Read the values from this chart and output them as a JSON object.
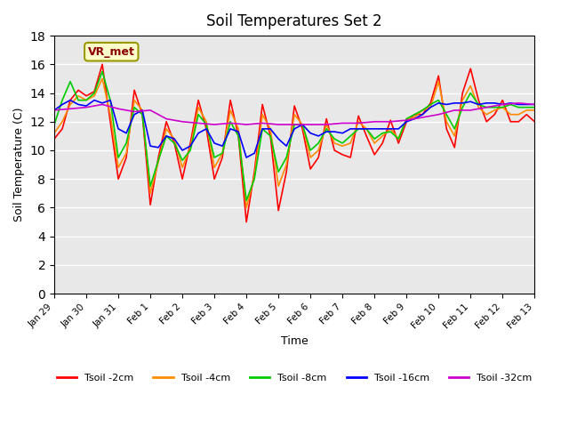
{
  "title": "Soil Temperatures Set 2",
  "xlabel": "Time",
  "ylabel": "Soil Temperature (C)",
  "xlim": [
    0,
    15
  ],
  "ylim": [
    0,
    18
  ],
  "yticks": [
    0,
    2,
    4,
    6,
    8,
    10,
    12,
    14,
    16,
    18
  ],
  "xtick_labels": [
    "Jan 29",
    "Jan 30",
    "Jan 31",
    "Feb 1",
    "Feb 2",
    "Feb 3",
    "Feb 4",
    "Feb 5",
    "Feb 6",
    "Feb 7",
    "Feb 8",
    "Feb 9",
    "Feb 10",
    "Feb 11",
    "Feb 12",
    "Feb 13"
  ],
  "xtick_positions": [
    0,
    1,
    2,
    3,
    4,
    5,
    6,
    7,
    8,
    9,
    10,
    11,
    12,
    13,
    14,
    15
  ],
  "background_color": "#ffffff",
  "plot_bg_color": "#e8e8e8",
  "annotation_text": "VR_met",
  "annotation_color": "#8B0000",
  "annotation_bg": "#ffffcc",
  "series": {
    "Tsoil -2cm": {
      "color": "#ff0000",
      "x": [
        0,
        0.25,
        0.5,
        0.75,
        1.0,
        1.25,
        1.5,
        1.75,
        2.0,
        2.25,
        2.5,
        2.75,
        3.0,
        3.25,
        3.5,
        3.75,
        4.0,
        4.25,
        4.5,
        4.75,
        5.0,
        5.25,
        5.5,
        5.75,
        6.0,
        6.25,
        6.5,
        6.75,
        7.0,
        7.25,
        7.5,
        7.75,
        8.0,
        8.25,
        8.5,
        8.75,
        9.0,
        9.25,
        9.5,
        9.75,
        10.0,
        10.25,
        10.5,
        10.75,
        11.0,
        11.25,
        11.5,
        11.75,
        12.0,
        12.25,
        12.5,
        12.75,
        13.0,
        13.25,
        13.5,
        13.75,
        14.0,
        14.25,
        14.5,
        14.75,
        15.0
      ],
      "y": [
        10.8,
        11.5,
        13.5,
        14.2,
        13.8,
        14.1,
        16.0,
        12.0,
        8.0,
        9.5,
        14.2,
        12.5,
        6.2,
        9.5,
        12.0,
        10.5,
        8.0,
        10.5,
        13.5,
        11.5,
        8.0,
        9.5,
        13.5,
        11.0,
        5.0,
        8.5,
        13.2,
        11.0,
        5.8,
        8.5,
        13.1,
        11.5,
        8.7,
        9.5,
        12.2,
        10.0,
        9.7,
        9.5,
        12.4,
        11.0,
        9.7,
        10.5,
        12.1,
        10.5,
        12.0,
        12.5,
        12.5,
        13.3,
        15.2,
        11.5,
        10.2,
        14.0,
        15.7,
        13.5,
        12.0,
        12.5,
        13.5,
        12.0,
        12.0,
        12.5,
        12.0
      ]
    },
    "Tsoil -4cm": {
      "color": "#ff8c00",
      "x": [
        0,
        0.25,
        0.5,
        0.75,
        1.0,
        1.25,
        1.5,
        1.75,
        2.0,
        2.25,
        2.5,
        2.75,
        3.0,
        3.25,
        3.5,
        3.75,
        4.0,
        4.25,
        4.5,
        4.75,
        5.0,
        5.25,
        5.5,
        5.75,
        6.0,
        6.25,
        6.5,
        6.75,
        7.0,
        7.25,
        7.5,
        7.75,
        8.0,
        8.25,
        8.5,
        8.75,
        9.0,
        9.25,
        9.5,
        9.75,
        10.0,
        10.25,
        10.5,
        10.75,
        11.0,
        11.25,
        11.5,
        11.75,
        12.0,
        12.25,
        12.5,
        12.75,
        13.0,
        13.25,
        13.5,
        13.75,
        14.0,
        14.25,
        14.5,
        14.75,
        15.0
      ],
      "y": [
        11.2,
        12.0,
        13.2,
        13.8,
        13.5,
        13.8,
        15.0,
        12.5,
        8.8,
        9.8,
        13.5,
        12.8,
        7.0,
        9.2,
        11.5,
        10.8,
        8.8,
        10.2,
        13.0,
        12.0,
        8.8,
        9.8,
        12.8,
        11.5,
        6.0,
        8.2,
        12.5,
        11.5,
        7.5,
        9.0,
        12.5,
        11.8,
        9.5,
        10.0,
        11.8,
        10.5,
        10.3,
        10.5,
        12.0,
        11.5,
        10.5,
        11.0,
        11.5,
        10.8,
        12.2,
        12.3,
        12.8,
        13.0,
        14.8,
        12.0,
        11.0,
        13.5,
        14.5,
        13.0,
        12.5,
        12.8,
        13.0,
        12.5,
        12.5,
        12.8,
        12.8
      ]
    },
    "Tsoil -8cm": {
      "color": "#00cc00",
      "x": [
        0,
        0.25,
        0.5,
        0.75,
        1.0,
        1.25,
        1.5,
        1.75,
        2.0,
        2.25,
        2.5,
        2.75,
        3.0,
        3.25,
        3.5,
        3.75,
        4.0,
        4.25,
        4.5,
        4.75,
        5.0,
        5.25,
        5.5,
        5.75,
        6.0,
        6.25,
        6.5,
        6.75,
        7.0,
        7.25,
        7.5,
        7.75,
        8.0,
        8.25,
        8.5,
        8.75,
        9.0,
        9.25,
        9.5,
        9.75,
        10.0,
        10.25,
        10.5,
        10.75,
        11.0,
        11.25,
        11.5,
        11.75,
        12.0,
        12.25,
        12.5,
        12.75,
        13.0,
        13.25,
        13.5,
        13.75,
        14.0,
        14.25,
        14.5,
        14.75,
        15.0
      ],
      "y": [
        11.8,
        13.5,
        14.8,
        13.5,
        13.5,
        14.0,
        15.5,
        13.5,
        9.5,
        10.5,
        13.0,
        12.5,
        7.5,
        9.3,
        11.0,
        10.5,
        9.3,
        10.0,
        12.5,
        11.8,
        9.5,
        9.8,
        12.0,
        11.0,
        6.5,
        8.0,
        11.5,
        11.0,
        8.5,
        9.5,
        11.8,
        11.8,
        10.0,
        10.5,
        11.5,
        10.8,
        10.5,
        11.0,
        11.5,
        11.5,
        10.8,
        11.2,
        11.3,
        10.8,
        12.2,
        12.5,
        12.8,
        13.2,
        13.5,
        12.5,
        11.5,
        13.0,
        14.0,
        13.2,
        13.0,
        13.0,
        13.0,
        13.2,
        13.0,
        13.0,
        13.0
      ]
    },
    "Tsoil -16cm": {
      "color": "#0000ff",
      "x": [
        0,
        0.25,
        0.5,
        0.75,
        1.0,
        1.25,
        1.5,
        1.75,
        2.0,
        2.25,
        2.5,
        2.75,
        3.0,
        3.25,
        3.5,
        3.75,
        4.0,
        4.25,
        4.5,
        4.75,
        5.0,
        5.25,
        5.5,
        5.75,
        6.0,
        6.25,
        6.5,
        6.75,
        7.0,
        7.25,
        7.5,
        7.75,
        8.0,
        8.25,
        8.5,
        8.75,
        9.0,
        9.25,
        9.5,
        9.75,
        10.0,
        10.25,
        10.5,
        10.75,
        11.0,
        11.25,
        11.5,
        11.75,
        12.0,
        12.25,
        12.5,
        12.75,
        13.0,
        13.25,
        13.5,
        13.75,
        14.0,
        14.25,
        14.5,
        14.75,
        15.0
      ],
      "y": [
        12.8,
        13.2,
        13.5,
        13.2,
        13.1,
        13.5,
        13.3,
        13.5,
        11.5,
        11.2,
        12.5,
        12.8,
        10.3,
        10.2,
        11.0,
        10.8,
        10.0,
        10.3,
        11.2,
        11.5,
        10.5,
        10.3,
        11.5,
        11.3,
        9.5,
        9.8,
        11.5,
        11.5,
        10.8,
        10.3,
        11.5,
        11.8,
        11.2,
        11.0,
        11.3,
        11.3,
        11.2,
        11.5,
        11.5,
        11.5,
        11.5,
        11.5,
        11.5,
        11.5,
        12.0,
        12.2,
        12.5,
        13.0,
        13.3,
        13.2,
        13.3,
        13.3,
        13.4,
        13.2,
        13.3,
        13.3,
        13.2,
        13.3,
        13.2,
        13.2,
        13.2
      ]
    },
    "Tsoil -32cm": {
      "color": "#cc00cc",
      "x": [
        0,
        0.5,
        1.0,
        1.5,
        2.0,
        2.5,
        3.0,
        3.5,
        4.0,
        4.5,
        5.0,
        5.5,
        6.0,
        6.5,
        7.0,
        7.5,
        8.0,
        8.5,
        9.0,
        9.5,
        10.0,
        10.5,
        11.0,
        11.5,
        12.0,
        12.5,
        13.0,
        13.5,
        14.0,
        14.5,
        15.0
      ],
      "y": [
        12.8,
        12.9,
        13.0,
        13.2,
        12.9,
        12.7,
        12.8,
        12.2,
        12.0,
        11.9,
        11.8,
        11.9,
        11.8,
        11.9,
        11.8,
        11.8,
        11.8,
        11.8,
        11.9,
        11.9,
        12.0,
        12.0,
        12.1,
        12.3,
        12.5,
        12.8,
        12.8,
        13.0,
        13.2,
        13.3,
        13.2
      ]
    }
  },
  "legend_entries": [
    "Tsoil -2cm",
    "Tsoil -4cm",
    "Tsoil -8cm",
    "Tsoil -16cm",
    "Tsoil -32cm"
  ],
  "legend_colors": [
    "#ff0000",
    "#ff8c00",
    "#00cc00",
    "#0000ff",
    "#cc00cc"
  ]
}
